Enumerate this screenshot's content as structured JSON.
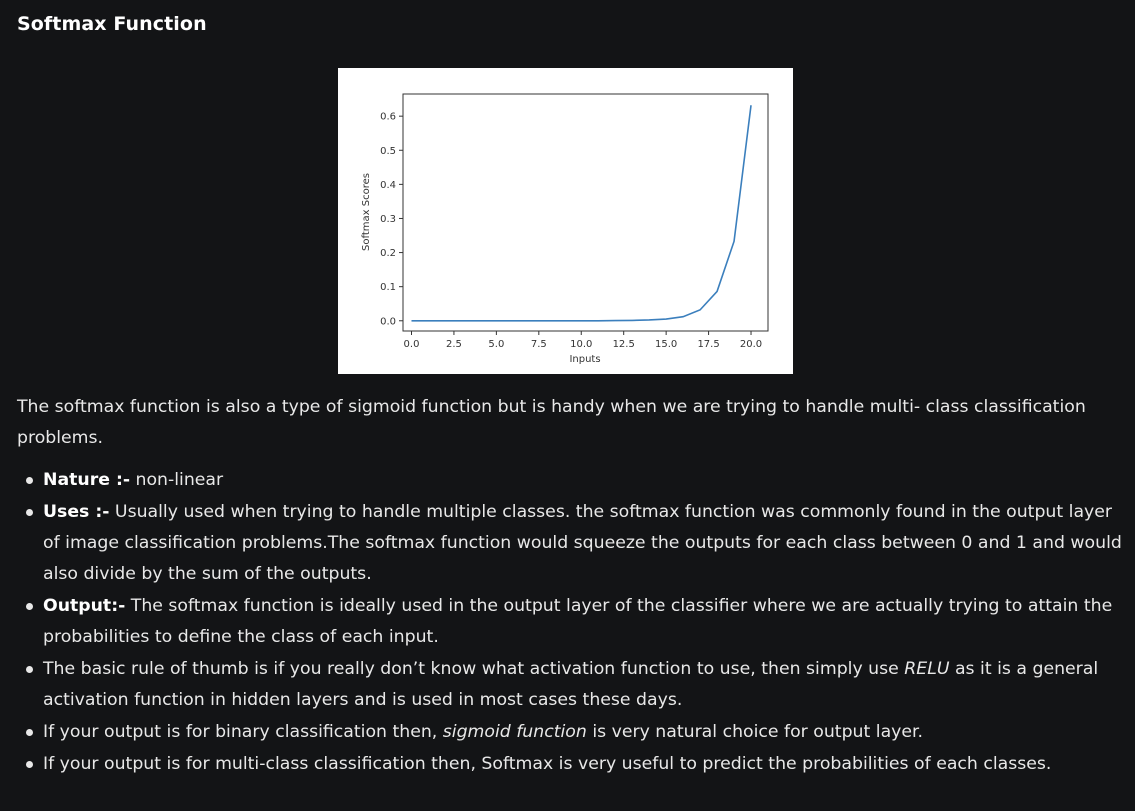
{
  "title": "Softmax Function",
  "chart_data": {
    "type": "line",
    "title": "",
    "xlabel": "Inputs",
    "ylabel": "Softmax Scores",
    "xlim": [
      -0.5,
      21
    ],
    "ylim": [
      -0.03,
      0.665
    ],
    "xticks": [
      0.0,
      2.5,
      5.0,
      7.5,
      10.0,
      12.5,
      15.0,
      17.5,
      20.0
    ],
    "xtick_labels": [
      "0.0",
      "2.5",
      "5.0",
      "7.5",
      "10.0",
      "12.5",
      "15.0",
      "17.5",
      "20.0"
    ],
    "yticks": [
      0.0,
      0.1,
      0.2,
      0.3,
      0.4,
      0.5,
      0.6
    ],
    "ytick_labels": [
      "0.0",
      "0.1",
      "0.2",
      "0.3",
      "0.4",
      "0.5",
      "0.6"
    ],
    "grid": false,
    "line_color": "#3b7fbd",
    "series": [
      {
        "x": [
          0,
          1,
          2,
          3,
          4,
          5,
          6,
          7,
          8,
          9,
          10,
          11,
          12,
          13,
          14,
          15,
          16,
          17,
          18,
          19,
          20
        ],
        "y": [
          0.0,
          0.0,
          0.0,
          0.0,
          0.0,
          0.0,
          0.0,
          0.0,
          0.0,
          0.0,
          0.0,
          0.0,
          0.0005,
          0.0011,
          0.0025,
          0.005,
          0.012,
          0.032,
          0.086,
          0.233,
          0.632
        ]
      }
    ]
  },
  "intro": "The softmax function is also a type of sigmoid function but is handy when we are trying to handle multi- class classification problems.",
  "bullets": [
    {
      "label": "Nature :-",
      "text": " non-linear"
    },
    {
      "label": "Uses :-",
      "text": " Usually used when trying to handle multiple classes. the softmax function was commonly found in the output layer of image classification problems.The softmax function would squeeze the outputs for each class between 0 and 1 and would also divide by the sum of the outputs."
    },
    {
      "label": "Output:-",
      "text": " The softmax function is ideally used in the output layer of the classifier where we are actually trying to attain the probabilities to define the class of each input."
    },
    {
      "before": "The basic rule of thumb is if you really don’t know what activation function to use, then simply use ",
      "em": "RELU",
      "after": " as it is a general activation function in hidden layers and is used in most cases these days."
    },
    {
      "before": "If your output is for binary classification then, ",
      "em": "sigmoid function",
      "after": " is very natural choice for output layer."
    },
    {
      "text": "If your output is for multi-class classification then, Softmax is very useful to predict the probabilities of each classes."
    }
  ]
}
